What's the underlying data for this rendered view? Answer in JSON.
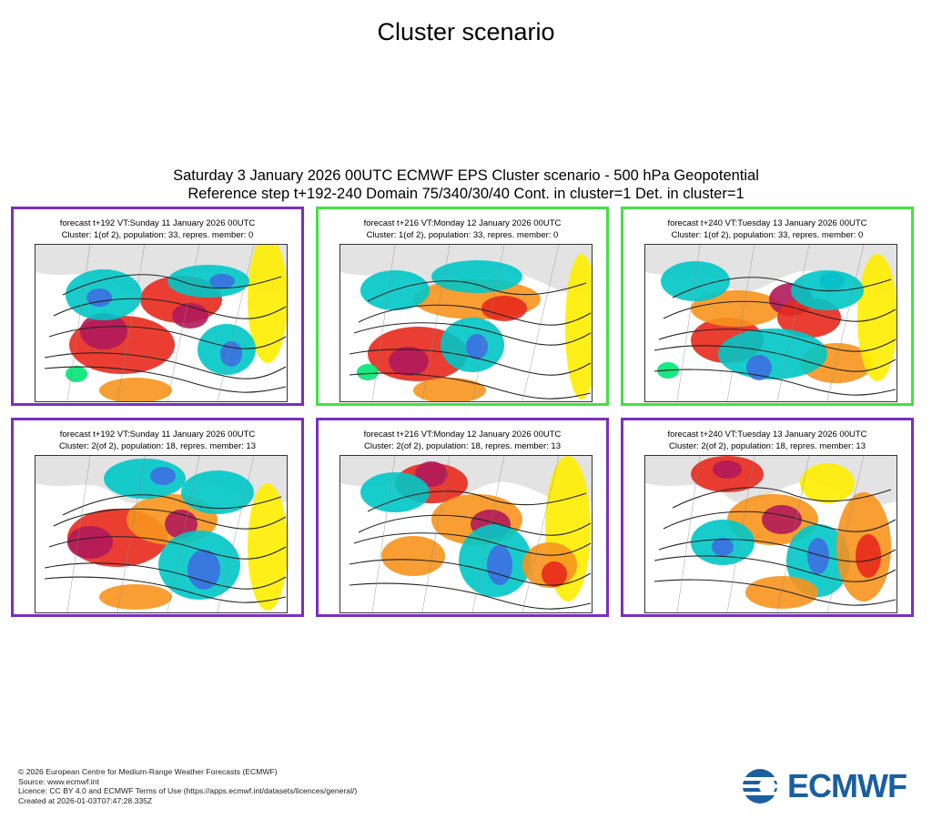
{
  "page_title": "Cluster scenario",
  "header": {
    "line1": "Saturday 3 January 2026 00UTC ECMWF EPS Cluster scenario - 500 hPa Geopotential",
    "line2": "Reference step t+192-240 Domain 75/340/30/40 Cont. in cluster=1 Det. in cluster=1"
  },
  "panels": [
    {
      "caption1": "forecast t+192 VT:Sunday 11 January 2026 00UTC",
      "caption2": "Cluster: 1(of 2), population: 33, repres. member: 0",
      "frame_color": "#7b2fbe"
    },
    {
      "caption1": "forecast t+216 VT:Monday 12 January 2026 00UTC",
      "caption2": "Cluster: 1(of 2), population: 33, repres. member: 0",
      "frame_color": "#43e043"
    },
    {
      "caption1": "forecast t+240 VT:Tuesday 13 January 2026 00UTC",
      "caption2": "Cluster: 1(of 2), population: 33, repres. member: 0",
      "frame_color": "#43e043"
    },
    {
      "caption1": "forecast t+192 VT:Sunday 11 January 2026 00UTC",
      "caption2": "Cluster: 2(of 2), population: 18, repres. member: 13",
      "frame_color": "#7b2fbe"
    },
    {
      "caption1": "forecast t+216 VT:Monday 12 January 2026 00UTC",
      "caption2": "Cluster: 2(of 2), population: 18, repres. member: 13",
      "frame_color": "#7b2fbe"
    },
    {
      "caption1": "forecast t+240 VT:Tuesday 13 January 2026 00UTC",
      "caption2": "Cluster: 2(of 2), population: 18, repres. member: 13",
      "frame_color": "#7b2fbe"
    }
  ],
  "footer": {
    "line1": "© 2026 European Centre for Medium-Range Weather Forecasts (ECMWF)",
    "line2": "Source: www.ecmwf.int",
    "line3": "Licence: CC BY 4.0 and ECMWF Terms of Use (https://apps.ecmwf.int/datasets/licences/general/)",
    "line4": "Created at 2026-01-03T07:47:28.335Z"
  },
  "logo": {
    "text": "ECMWF",
    "color": "#1a5f9e"
  },
  "anomaly_colors": {
    "strong_positive": "#b0195a",
    "positive": "#e8291c",
    "moderate_positive": "#f7941d",
    "weak_positive": "#ffed00",
    "neutral": "#a0a0a0",
    "weak_negative": "#00e676",
    "negative": "#00c7c7",
    "strong_negative": "#3d6fe0"
  }
}
